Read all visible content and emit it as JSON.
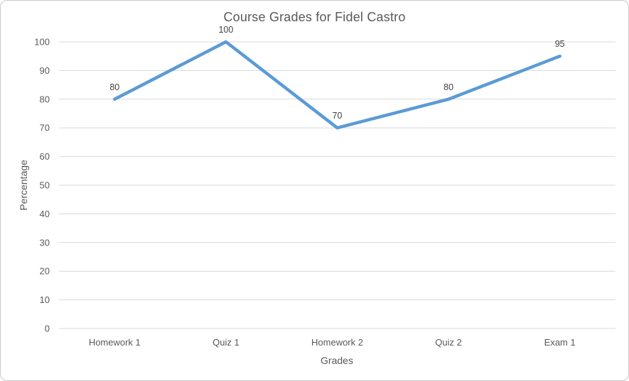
{
  "chart_data": {
    "type": "line",
    "title": "Course Grades for Fidel Castro",
    "xlabel": "Grades",
    "ylabel": "Percentage",
    "categories": [
      "Homework 1",
      "Quiz 1",
      "Homework 2",
      "Quiz 2",
      "Exam 1"
    ],
    "series": [
      {
        "name": "Percentage",
        "values": [
          80,
          100,
          70,
          80,
          95
        ]
      }
    ],
    "data_labels": [
      "80",
      "100",
      "70",
      "80",
      "95"
    ],
    "ylim": [
      0,
      100
    ],
    "ytick_step": 10,
    "yticks": [
      0,
      10,
      20,
      30,
      40,
      50,
      60,
      70,
      80,
      90,
      100
    ],
    "grid": "horizontal",
    "legend": "none",
    "colors": {
      "line": "#5B9BD5",
      "gridline": "#D9D9D9",
      "tick_text": "#595959",
      "axis_title_text": "#595959",
      "title_text": "#595959",
      "data_label_text": "#404040",
      "border": "#C9C9C9",
      "background": "#FFFFFF"
    }
  }
}
